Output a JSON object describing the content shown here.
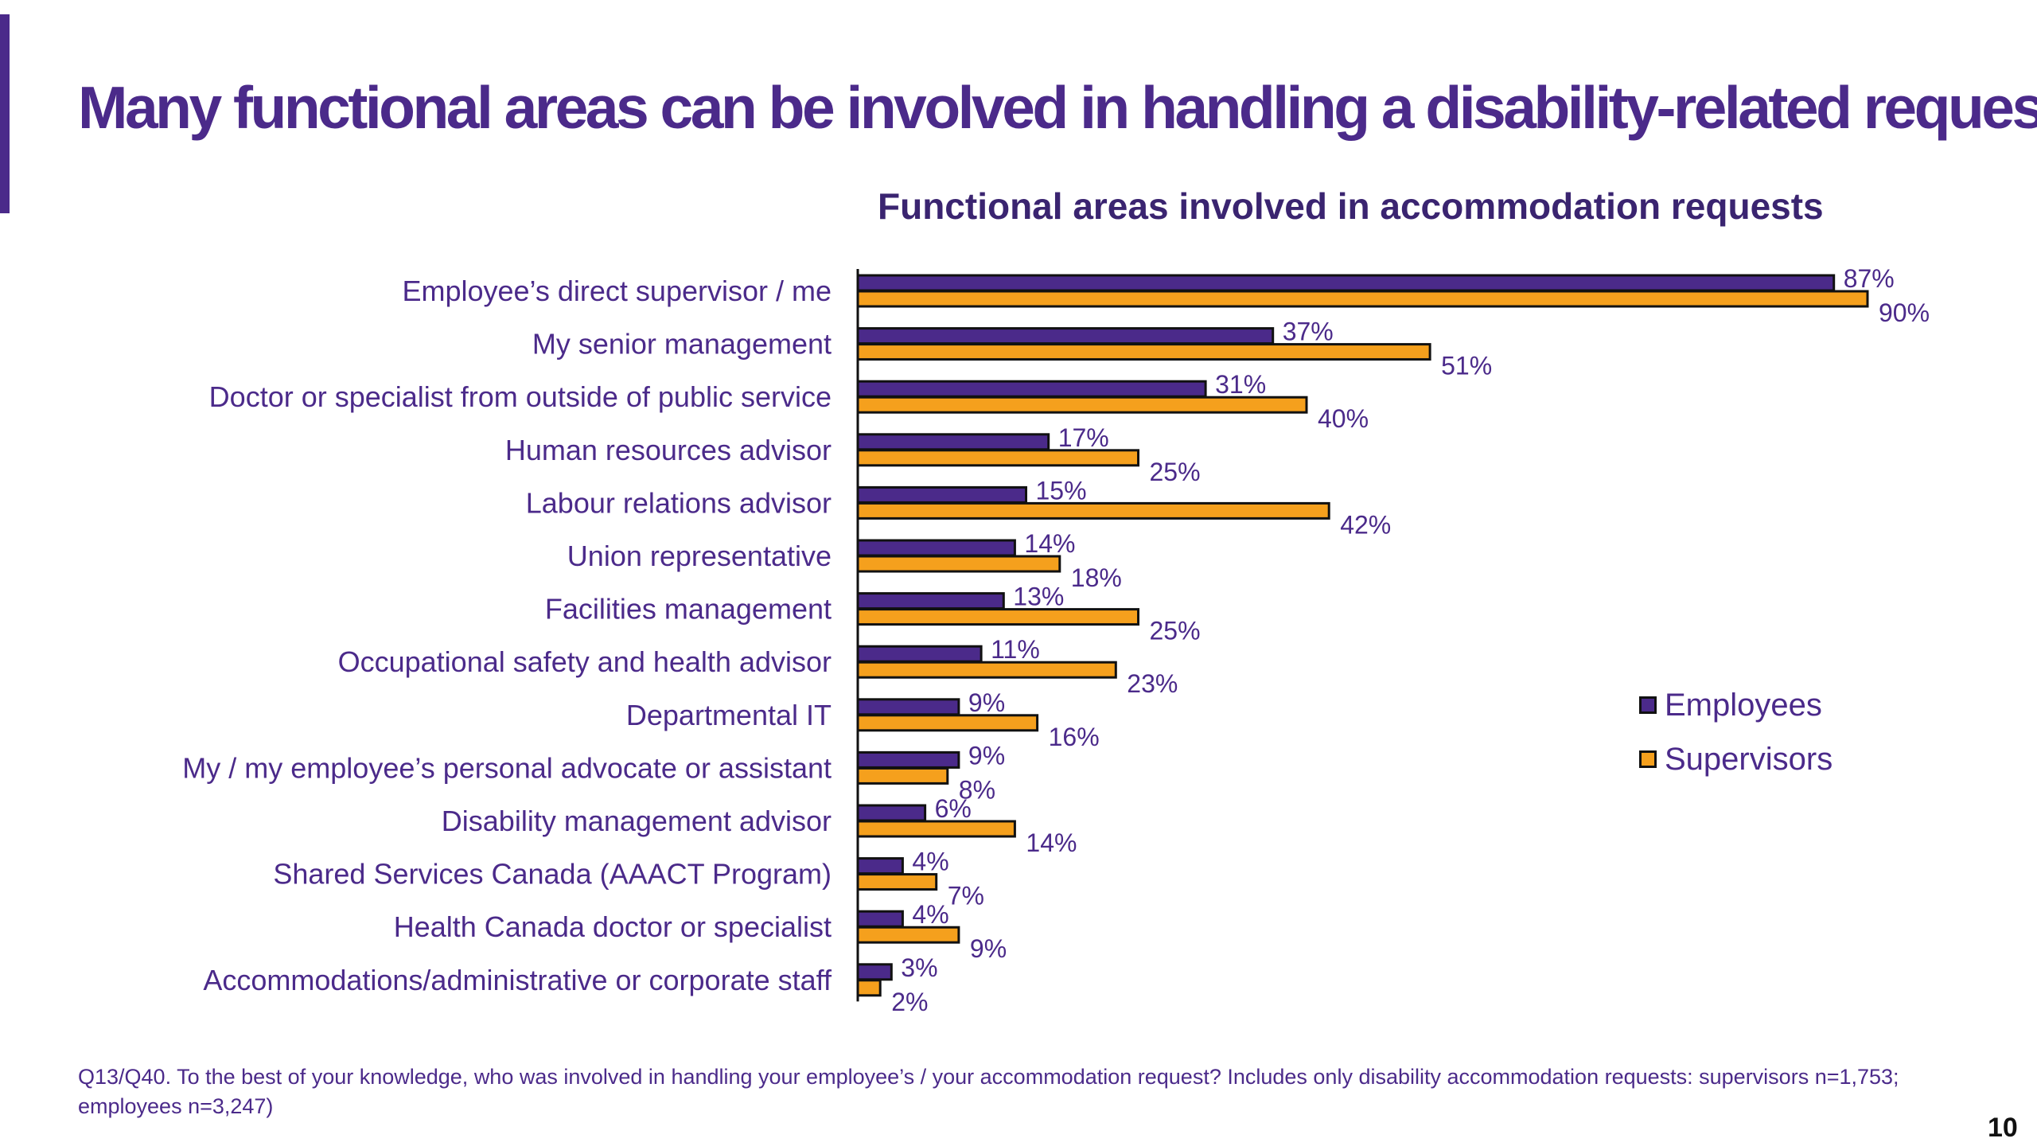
{
  "slide": {
    "title": "Many functional areas can be involved in handling a disability-related request",
    "footnote": "Q13/Q40. To the best of your knowledge, who was involved in handling your employee’s / your accommodation request? Includes only disability accommodation requests: supervisors n=1,753; employees n=3,247)",
    "page_number": "10"
  },
  "chart_data": {
    "type": "bar",
    "orientation": "horizontal",
    "title": "Functional areas involved in accommodation requests",
    "categories": [
      "Employee’s direct supervisor / me",
      "My senior management",
      "Doctor or specialist from outside of public service",
      "Human resources advisor",
      "Labour relations advisor",
      "Union representative",
      "Facilities management",
      "Occupational safety and health advisor",
      "Departmental IT",
      "My / my employee’s personal advocate or assistant",
      "Disability management advisor",
      "Shared Services Canada (AAACT Program)",
      "Health Canada doctor or specialist",
      "Accommodations/administrative or corporate staff"
    ],
    "series": [
      {
        "name": "Employees",
        "color": "#4b2a8a",
        "values": [
          87,
          37,
          31,
          17,
          15,
          14,
          13,
          11,
          9,
          9,
          6,
          4,
          4,
          3
        ]
      },
      {
        "name": "Supervisors",
        "color": "#f5a01d",
        "values": [
          90,
          51,
          40,
          25,
          42,
          18,
          25,
          23,
          16,
          8,
          14,
          7,
          9,
          2
        ]
      }
    ],
    "value_suffix": "%",
    "xlim": [
      0,
      100
    ],
    "grid": false,
    "legend_position": "right"
  }
}
